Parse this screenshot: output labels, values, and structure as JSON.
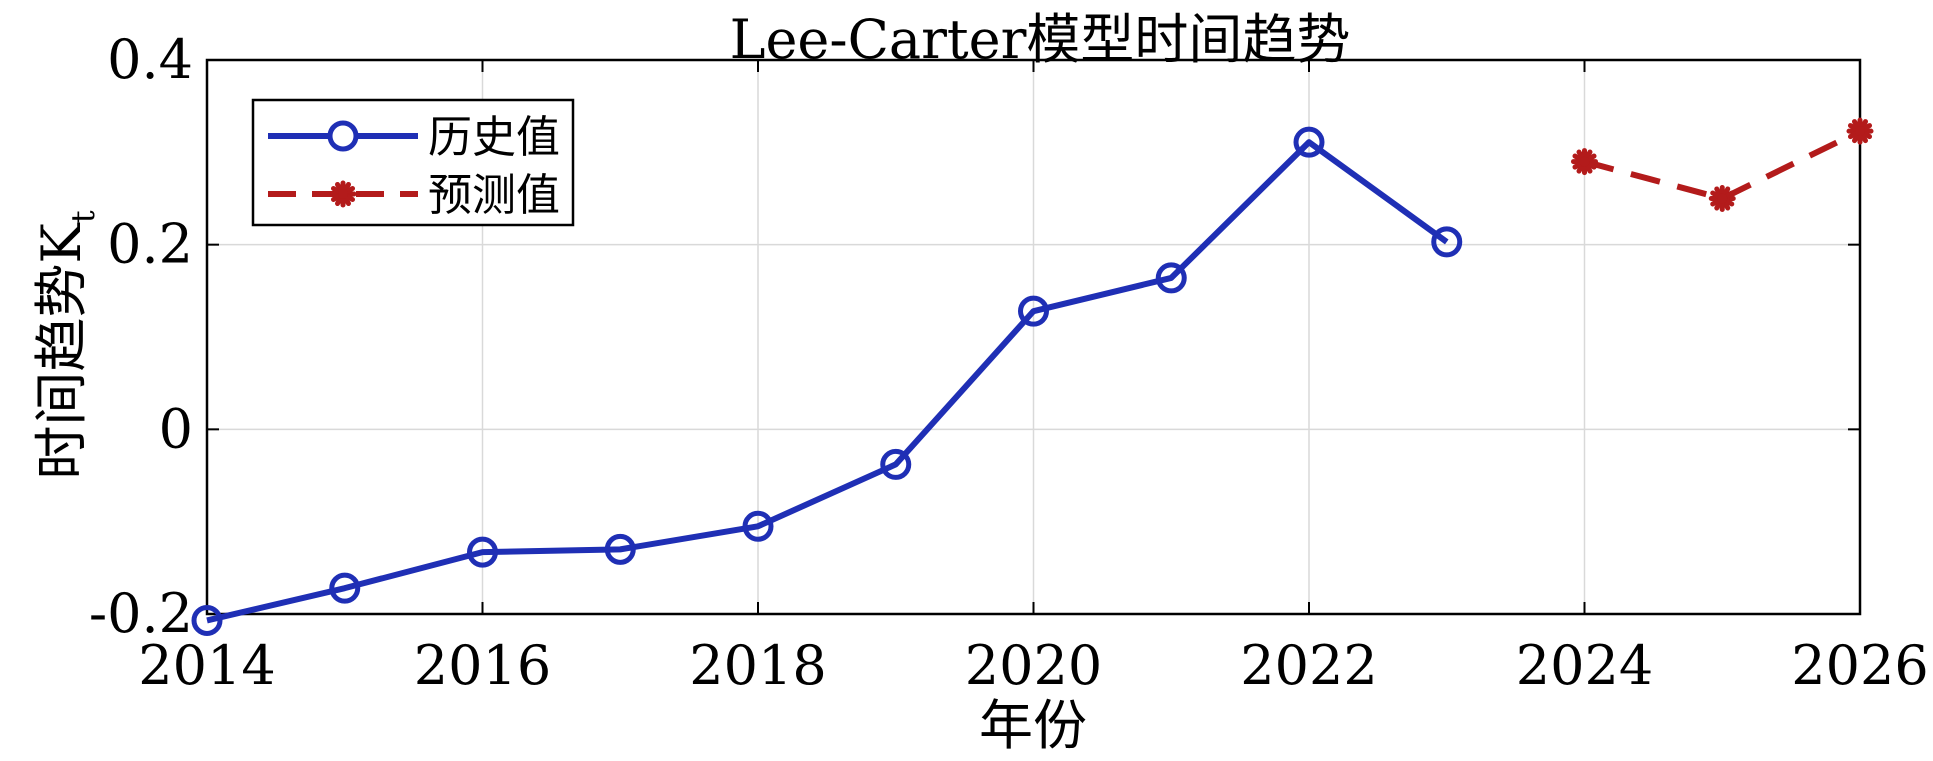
{
  "chart_data": {
    "type": "line",
    "title": "Lee-Carter模型时间趋势",
    "xlabel": "年份",
    "ylabel_main": "时间趋势K",
    "ylabel_sub": "t",
    "xlim": [
      2014,
      2026
    ],
    "ylim": [
      -0.2,
      0.4
    ],
    "x_ticks": [
      2014,
      2016,
      2018,
      2020,
      2022,
      2024,
      2026
    ],
    "y_ticks": [
      0.4,
      0.2,
      0,
      -0.2
    ],
    "y_tick_labels": [
      "0.4",
      "0.2",
      "0",
      "-0.2"
    ],
    "grid": true,
    "legend_position": "top-left",
    "series": [
      {
        "name": "历史值",
        "color": "#1f2fb5",
        "line_style": "solid",
        "marker": "circle",
        "x": [
          2014,
          2015,
          2016,
          2017,
          2018,
          2019,
          2020,
          2021,
          2022,
          2023
        ],
        "y": [
          -0.207,
          -0.172,
          -0.133,
          -0.13,
          -0.105,
          -0.038,
          0.128,
          0.164,
          0.311,
          0.203
        ]
      },
      {
        "name": "预测值",
        "color": "#b31b1b",
        "line_style": "dashed",
        "marker": "asterisk",
        "x": [
          2024,
          2025,
          2026
        ],
        "y": [
          0.29,
          0.25,
          0.323
        ]
      }
    ]
  }
}
